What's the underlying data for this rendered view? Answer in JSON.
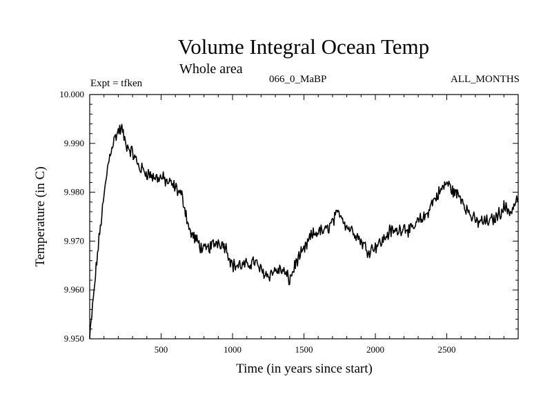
{
  "chart_data": {
    "type": "line",
    "title": "Volume Integral Ocean Temp",
    "subtitle": "Whole area",
    "annotations": {
      "experiment": "Expt = tfken",
      "run": "066_0_MaBP",
      "period": "ALL_MONTHS"
    },
    "xlabel": "Time (in years since start)",
    "ylabel": "Temperature (in C)",
    "xlim": [
      0,
      3000
    ],
    "ylim": [
      9.95,
      10.0
    ],
    "x_ticks": [
      500,
      1000,
      1500,
      2000,
      2500
    ],
    "x_tick_labels": [
      "500",
      "1000",
      "1500",
      "2000",
      "2500"
    ],
    "y_ticks": [
      9.95,
      9.96,
      9.97,
      9.98,
      9.99,
      10.0
    ],
    "y_tick_labels": [
      "9.950",
      "9.960",
      "9.970",
      "9.980",
      "9.990",
      "10.000"
    ],
    "grid": false,
    "series": [
      {
        "color": "#000000",
        "x": [
          0,
          25,
          50,
          75,
          100,
          125,
          150,
          175,
          200,
          225,
          250,
          275,
          300,
          350,
          400,
          450,
          500,
          550,
          600,
          650,
          700,
          750,
          800,
          850,
          900,
          950,
          1000,
          1050,
          1100,
          1150,
          1200,
          1250,
          1300,
          1350,
          1400,
          1450,
          1500,
          1550,
          1600,
          1650,
          1700,
          1750,
          1800,
          1850,
          1900,
          1950,
          2000,
          2050,
          2100,
          2150,
          2200,
          2250,
          2300,
          2350,
          2400,
          2450,
          2500,
          2550,
          2600,
          2650,
          2700,
          2750,
          2800,
          2850,
          2900,
          2950,
          3000
        ],
        "y": [
          9.95,
          9.958,
          9.966,
          9.973,
          9.979,
          9.985,
          9.989,
          9.991,
          9.9925,
          9.993,
          9.99,
          9.989,
          9.988,
          9.985,
          9.984,
          9.983,
          9.983,
          9.982,
          9.981,
          9.979,
          9.972,
          9.97,
          9.968,
          9.969,
          9.97,
          9.969,
          9.965,
          9.965,
          9.965,
          9.966,
          9.964,
          9.963,
          9.964,
          9.964,
          9.962,
          9.966,
          9.968,
          9.971,
          9.972,
          9.972,
          9.974,
          9.976,
          9.973,
          9.972,
          9.97,
          9.968,
          9.969,
          9.97,
          9.972,
          9.972,
          9.973,
          9.972,
          9.974,
          9.975,
          9.978,
          9.98,
          9.982,
          9.98,
          9.979,
          9.976,
          9.974,
          9.974,
          9.974,
          9.975,
          9.977,
          9.976,
          9.979
        ]
      }
    ]
  }
}
